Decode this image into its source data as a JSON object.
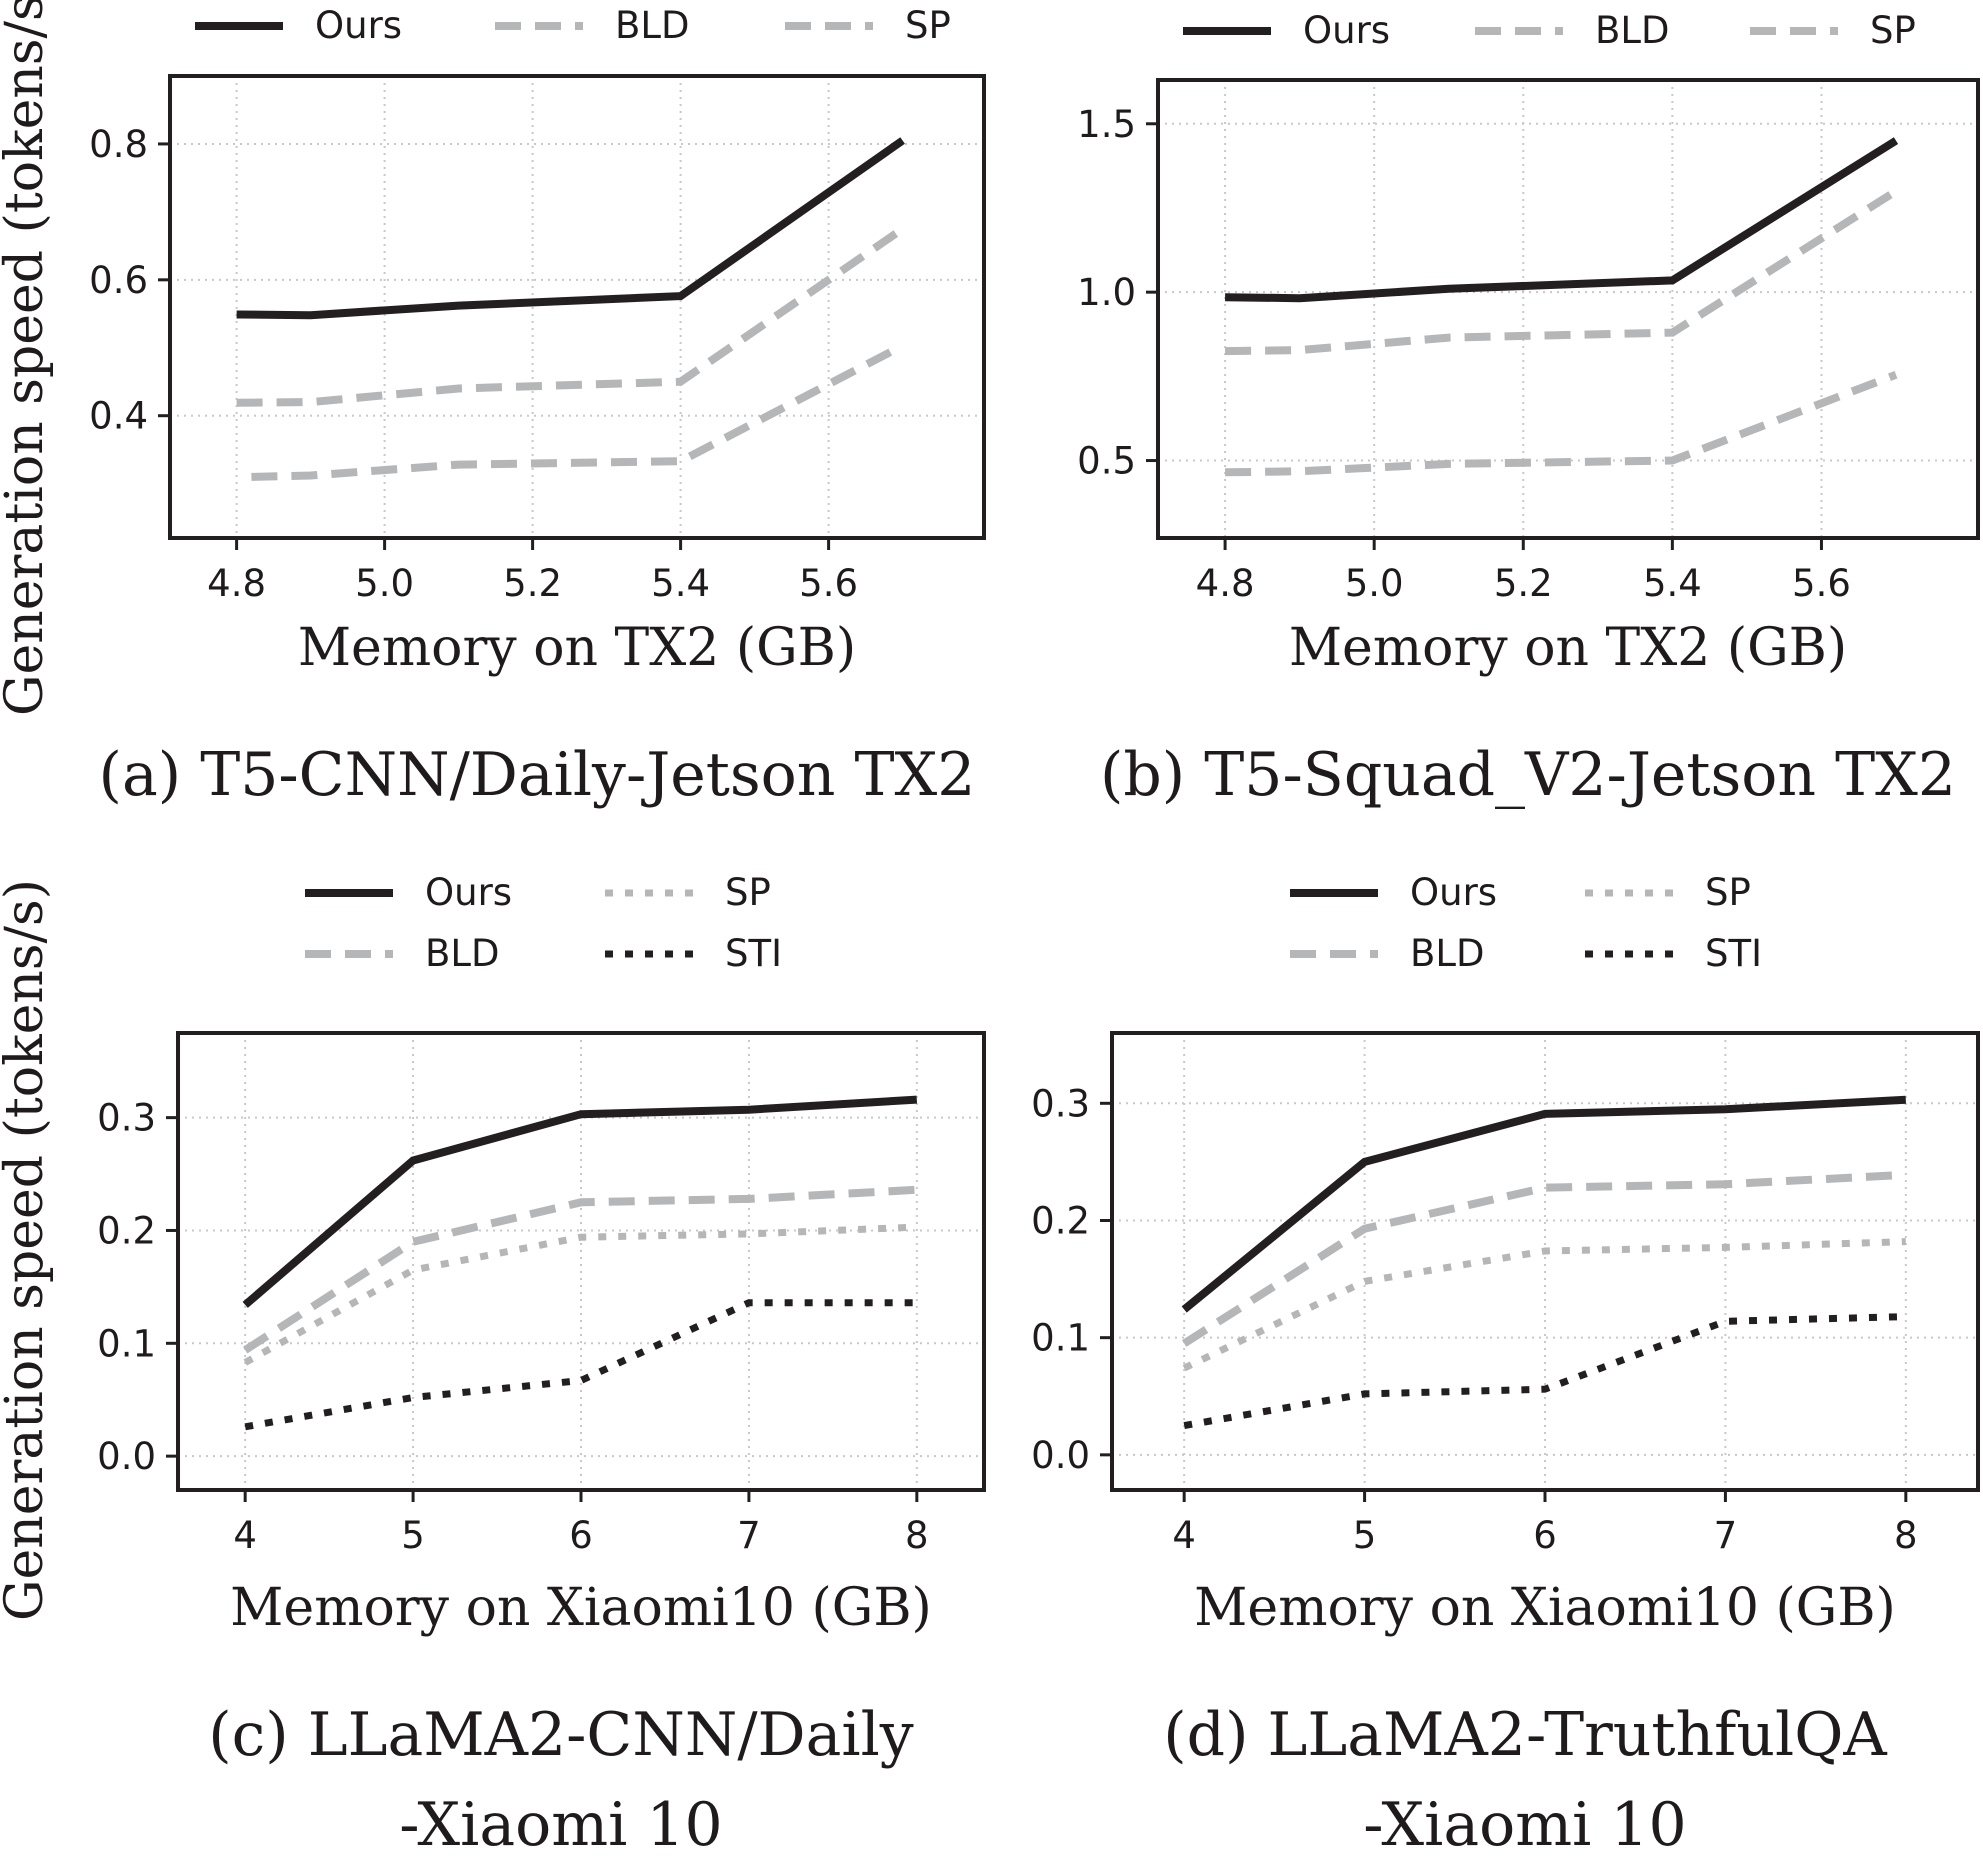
{
  "figure": {
    "ylabel_shared": "Generation speed (tokens/s)"
  },
  "chart_data": [
    {
      "id": "a",
      "type": "line",
      "caption": "(a) T5-CNN/Daily-Jetson TX2",
      "xlabel": "Memory on TX2 (GB)",
      "ylabel": "Generation speed (tokens/s)",
      "xlim": [
        4.71,
        5.81
      ],
      "ylim": [
        0.22,
        0.9
      ],
      "xticks": [
        "4.8",
        "5.0",
        "5.2",
        "5.4",
        "5.6"
      ],
      "xtick_values": [
        4.8,
        5.0,
        5.2,
        5.4,
        5.6
      ],
      "yticks": [
        "0.4",
        "0.6",
        "0.8"
      ],
      "ytick_values": [
        0.4,
        0.6,
        0.8
      ],
      "grid": true,
      "legend": {
        "placement": "top",
        "columns": 3,
        "entries": [
          "Ours",
          "BLD",
          "SP"
        ]
      },
      "series_identity_note": "BLD and SP share an identical gray dashed style in this legend; the upper-vs-lower assignment below is assumed from legend order, not confirmed by the image.",
      "series": [
        {
          "name": "Ours",
          "style": "solid",
          "color": "#231f20",
          "identity": "confirmed",
          "x": [
            4.8,
            4.9,
            5.1,
            5.4,
            5.7
          ],
          "values": [
            0.549,
            0.548,
            0.562,
            0.576,
            0.805
          ]
        },
        {
          "name": "BLD",
          "style": "dashed",
          "color": "#b5b6b8",
          "identity": "assumed",
          "x": [
            4.8,
            4.9,
            5.1,
            5.4,
            5.7
          ],
          "values": [
            0.419,
            0.42,
            0.44,
            0.45,
            0.675
          ]
        },
        {
          "name": "SP",
          "style": "dashed",
          "color": "#b5b6b8",
          "identity": "assumed",
          "x": [
            4.82,
            4.9,
            5.1,
            5.4,
            5.7
          ],
          "values": [
            0.31,
            0.312,
            0.328,
            0.333,
            0.503
          ]
        }
      ]
    },
    {
      "id": "b",
      "type": "line",
      "caption": "(b) T5-Squad_V2-Jetson TX2",
      "xlabel": "Memory on TX2 (GB)",
      "ylabel": "",
      "xlim": [
        4.71,
        5.81
      ],
      "ylim": [
        0.27,
        1.63
      ],
      "xticks": [
        "4.8",
        "5.0",
        "5.2",
        "5.4",
        "5.6"
      ],
      "xtick_values": [
        4.8,
        5.0,
        5.2,
        5.4,
        5.6
      ],
      "yticks": [
        "0.5",
        "1.0",
        "1.5"
      ],
      "ytick_values": [
        0.5,
        1.0,
        1.5
      ],
      "grid": true,
      "legend": {
        "placement": "top",
        "columns": 3,
        "entries": [
          "Ours",
          "BLD",
          "SP"
        ]
      },
      "series_identity_note": "BLD and SP share an identical gray dashed style in this legend; the upper-vs-lower assignment below is assumed from legend order, not confirmed by the image.",
      "series": [
        {
          "name": "Ours",
          "style": "solid",
          "color": "#231f20",
          "identity": "confirmed",
          "x": [
            4.8,
            4.9,
            5.1,
            5.4,
            5.7
          ],
          "values": [
            0.985,
            0.982,
            1.01,
            1.035,
            1.45
          ]
        },
        {
          "name": "BLD",
          "style": "dashed",
          "color": "#b5b6b8",
          "identity": "assumed",
          "x": [
            4.8,
            4.9,
            5.1,
            5.4,
            5.7
          ],
          "values": [
            0.825,
            0.828,
            0.865,
            0.88,
            1.3
          ]
        },
        {
          "name": "SP",
          "style": "dashed",
          "color": "#b5b6b8",
          "identity": "assumed",
          "x": [
            4.8,
            4.9,
            5.1,
            5.4,
            5.7
          ],
          "values": [
            0.465,
            0.468,
            0.49,
            0.5,
            0.755
          ]
        }
      ]
    },
    {
      "id": "c",
      "type": "line",
      "caption": [
        "(c) LLaMA2-CNN/Daily",
        "-Xiaomi 10"
      ],
      "xlabel": "Memory on Xiaomi10 (GB)",
      "ylabel": "Generation speed (tokens/s)",
      "xlim": [
        3.6,
        8.4
      ],
      "ylim": [
        -0.03,
        0.375
      ],
      "xticks": [
        "4",
        "5",
        "6",
        "7",
        "8"
      ],
      "xtick_values": [
        4,
        5,
        6,
        7,
        8
      ],
      "yticks": [
        "0.0",
        "0.1",
        "0.2",
        "0.3"
      ],
      "ytick_values": [
        0.0,
        0.1,
        0.2,
        0.3
      ],
      "grid": true,
      "legend": {
        "placement": "top",
        "columns": 2,
        "entries": [
          "Ours",
          "BLD",
          "SP",
          "STI"
        ]
      },
      "series": [
        {
          "name": "Ours",
          "style": "solid",
          "color": "#231f20",
          "x": [
            4,
            5,
            6,
            7,
            8
          ],
          "values": [
            0.134,
            0.262,
            0.303,
            0.307,
            0.316
          ]
        },
        {
          "name": "BLD",
          "style": "dashed",
          "color": "#b5b6b8",
          "x": [
            4,
            5,
            6,
            7,
            8
          ],
          "values": [
            0.094,
            0.19,
            0.225,
            0.228,
            0.236
          ]
        },
        {
          "name": "SP",
          "style": "dotted",
          "color": "#b5b6b8",
          "x": [
            4,
            5,
            6,
            7,
            8
          ],
          "values": [
            0.083,
            0.165,
            0.194,
            0.197,
            0.203
          ]
        },
        {
          "name": "STI",
          "style": "dotted",
          "color": "#231f20",
          "x": [
            4,
            5,
            6,
            7,
            8
          ],
          "values": [
            0.026,
            0.052,
            0.067,
            0.136,
            0.136
          ]
        }
      ]
    },
    {
      "id": "d",
      "type": "line",
      "caption": [
        "(d) LLaMA2-TruthfulQA",
        "-Xiaomi 10"
      ],
      "xlabel": "Memory on Xiaomi10 (GB)",
      "ylabel": "",
      "xlim": [
        3.6,
        8.4
      ],
      "ylim": [
        -0.03,
        0.36
      ],
      "xticks": [
        "4",
        "5",
        "6",
        "7",
        "8"
      ],
      "xtick_values": [
        4,
        5,
        6,
        7,
        8
      ],
      "yticks": [
        "0.0",
        "0.1",
        "0.2",
        "0.3"
      ],
      "ytick_values": [
        0.0,
        0.1,
        0.2,
        0.3
      ],
      "grid": true,
      "legend": {
        "placement": "top",
        "columns": 2,
        "entries": [
          "Ours",
          "BLD",
          "SP",
          "STI"
        ]
      },
      "series": [
        {
          "name": "Ours",
          "style": "solid",
          "color": "#231f20",
          "x": [
            4,
            5,
            6,
            7,
            8
          ],
          "values": [
            0.124,
            0.25,
            0.291,
            0.295,
            0.303
          ]
        },
        {
          "name": "BLD",
          "style": "dashed",
          "color": "#b5b6b8",
          "x": [
            4,
            5,
            6,
            7,
            8
          ],
          "values": [
            0.095,
            0.193,
            0.228,
            0.231,
            0.239
          ]
        },
        {
          "name": "SP",
          "style": "dotted",
          "color": "#b5b6b8",
          "x": [
            4,
            5,
            6,
            7,
            8
          ],
          "values": [
            0.074,
            0.148,
            0.174,
            0.177,
            0.182
          ]
        },
        {
          "name": "STI",
          "style": "dotted",
          "color": "#231f20",
          "x": [
            4,
            5,
            6,
            7,
            8
          ],
          "values": [
            0.025,
            0.052,
            0.056,
            0.114,
            0.118
          ]
        }
      ]
    }
  ]
}
